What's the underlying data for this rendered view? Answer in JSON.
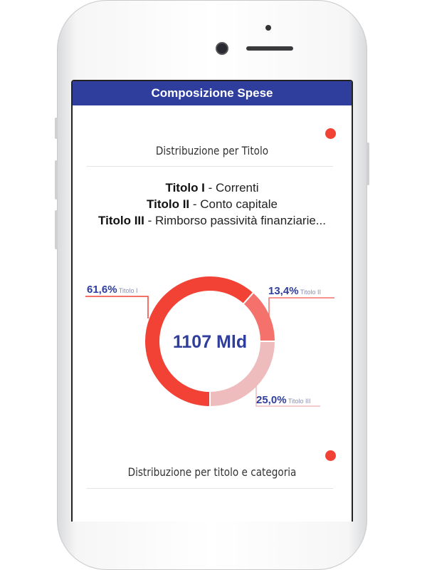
{
  "header": {
    "title": "Composizione Spese"
  },
  "sections": [
    {
      "title": "Distribuzione per Titolo"
    },
    {
      "title": "Distribuzione per titolo e categoria"
    }
  ],
  "legend": [
    {
      "code": "Titolo I",
      "desc": " - Correnti"
    },
    {
      "code": "Titolo II",
      "desc": " - Conto capitale"
    },
    {
      "code": "Titolo III",
      "desc": " - Rimborso passività finanziarie..."
    }
  ],
  "chart_data": {
    "type": "pie",
    "donut": true,
    "center_label": "1107 Mld",
    "categories": [
      "Titolo I",
      "Titolo II",
      "Titolo III"
    ],
    "values": [
      61.6,
      13.4,
      25.0
    ],
    "value_labels": [
      "61,6%",
      "13,4%",
      "25,0%"
    ],
    "colors": [
      "#f24236",
      "#f4726b",
      "#eebcbc"
    ],
    "label_color": "#2f3d9c"
  },
  "colors": {
    "header": "#2f3d9c",
    "indicator": "#f24236"
  }
}
